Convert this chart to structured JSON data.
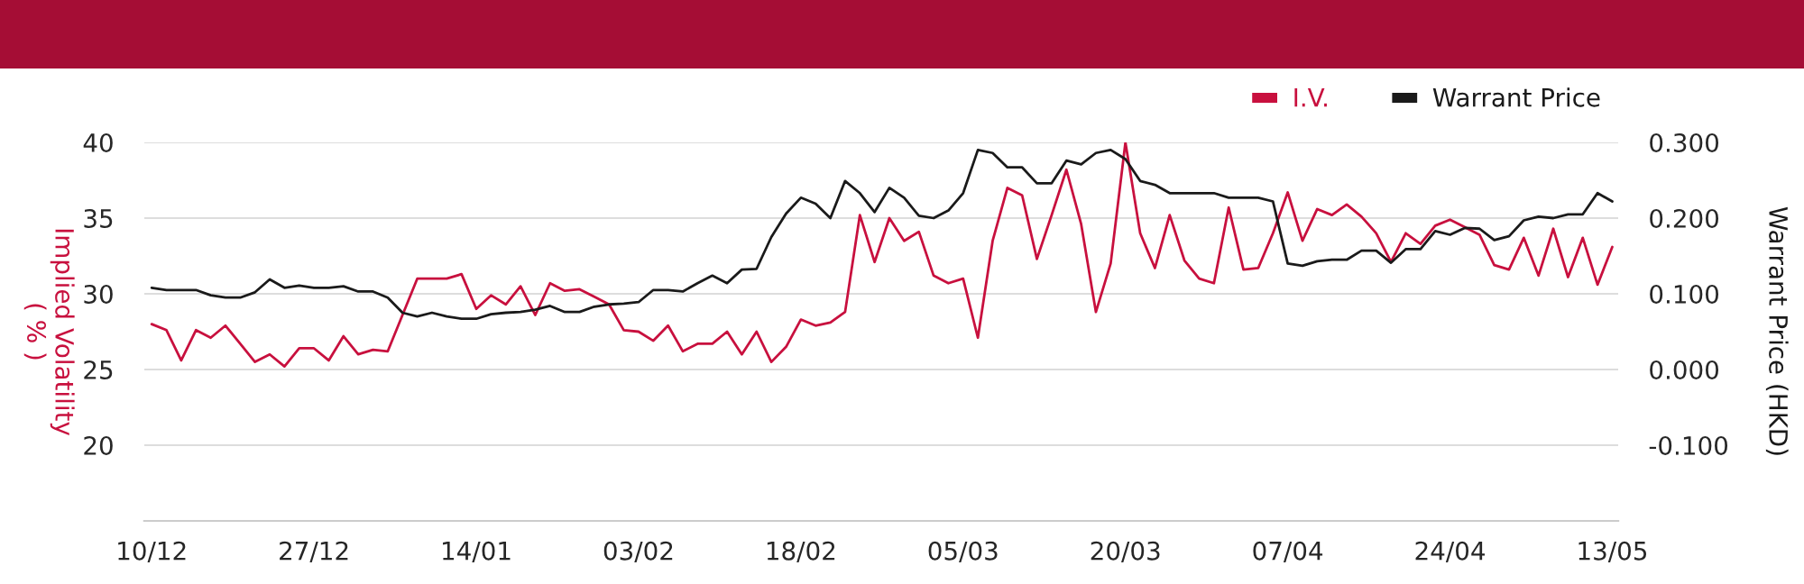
{
  "chart_data": {
    "type": "line",
    "categories": [
      "10/12",
      null,
      null,
      null,
      null,
      null,
      null,
      null,
      null,
      null,
      null,
      "27/12",
      null,
      null,
      null,
      null,
      null,
      null,
      null,
      null,
      null,
      null,
      "14/01",
      null,
      null,
      null,
      null,
      null,
      null,
      null,
      null,
      null,
      null,
      "03/02",
      null,
      null,
      null,
      null,
      null,
      null,
      null,
      null,
      null,
      null,
      "18/02",
      null,
      null,
      null,
      null,
      null,
      null,
      null,
      null,
      null,
      null,
      "05/03",
      null,
      null,
      null,
      null,
      null,
      null,
      null,
      null,
      null,
      null,
      "20/03",
      null,
      null,
      null,
      null,
      null,
      null,
      null,
      null,
      null,
      null,
      "07/04",
      null,
      null,
      null,
      null,
      null,
      null,
      null,
      null,
      null,
      null,
      "24/04",
      null,
      null,
      null,
      null,
      null,
      null,
      null,
      null,
      null,
      null,
      "13/05"
    ],
    "series": [
      {
        "name": "I.V.",
        "color": "#c8103e",
        "axis": "y",
        "values": [
          28.0,
          27.6,
          25.6,
          27.6,
          27.1,
          27.9,
          26.7,
          25.5,
          26.0,
          25.2,
          26.4,
          26.4,
          25.6,
          27.2,
          26.0,
          26.3,
          26.2,
          28.6,
          31.0,
          31.0,
          31.0,
          31.3,
          29.0,
          29.9,
          29.3,
          30.5,
          28.6,
          30.7,
          30.2,
          30.3,
          29.8,
          29.3,
          27.6,
          27.5,
          26.9,
          27.9,
          26.2,
          26.7,
          26.7,
          27.5,
          26.0,
          27.5,
          25.5,
          26.5,
          28.3,
          27.9,
          28.1,
          28.8,
          35.2,
          32.1,
          35.0,
          33.5,
          34.1,
          31.2,
          30.7,
          31.0,
          27.1,
          33.5,
          37.0,
          36.5,
          32.3,
          35.2,
          38.2,
          34.6,
          28.8,
          32.0,
          40.0,
          34.0,
          31.7,
          35.2,
          32.2,
          31.0,
          30.7,
          35.7,
          31.6,
          31.7,
          34.0,
          36.7,
          33.5,
          35.6,
          35.2,
          35.9,
          35.1,
          34.0,
          32.1,
          34.0,
          33.3,
          34.5,
          34.9,
          34.4,
          33.9,
          31.9,
          31.6,
          33.7,
          31.2,
          34.3,
          31.1,
          33.7,
          30.6,
          33.1
        ]
      },
      {
        "name": "Warrant Price",
        "color": "#1a1a1a",
        "axis": "y2",
        "values": [
          0.108,
          0.105,
          0.105,
          0.105,
          0.098,
          0.095,
          0.095,
          0.102,
          0.119,
          0.108,
          0.111,
          0.108,
          0.108,
          0.11,
          0.103,
          0.103,
          0.095,
          0.075,
          0.07,
          0.075,
          0.07,
          0.067,
          0.067,
          0.073,
          0.075,
          0.076,
          0.079,
          0.084,
          0.076,
          0.076,
          0.083,
          0.086,
          0.087,
          0.089,
          0.105,
          0.105,
          0.103,
          0.114,
          0.124,
          0.114,
          0.132,
          0.133,
          0.175,
          0.206,
          0.227,
          0.219,
          0.2,
          0.249,
          0.233,
          0.208,
          0.24,
          0.227,
          0.203,
          0.2,
          0.21,
          0.233,
          0.29,
          0.286,
          0.267,
          0.267,
          0.246,
          0.246,
          0.276,
          0.271,
          0.286,
          0.29,
          0.278,
          0.249,
          0.244,
          0.233,
          0.233,
          0.233,
          0.233,
          0.227,
          0.227,
          0.227,
          0.222,
          0.14,
          0.137,
          0.143,
          0.145,
          0.145,
          0.157,
          0.157,
          0.141,
          0.159,
          0.159,
          0.183,
          0.178,
          0.187,
          0.186,
          0.171,
          0.176,
          0.197,
          0.202,
          0.2,
          0.205,
          0.205,
          0.233,
          0.222
        ]
      }
    ],
    "ylabel": "Implied Volatility\n( % )",
    "y2label": "Warrant Price (HKD)",
    "ylim": [
      15,
      40
    ],
    "yticks": [
      20,
      25,
      30,
      35,
      40
    ],
    "y2lim": [
      -0.2,
      0.3
    ],
    "y2ticks": [
      {
        "value": -0.1,
        "label": "-0.100"
      },
      {
        "value": 0,
        "label": "0.000"
      },
      {
        "value": 0.1,
        "label": "0.100"
      },
      {
        "value": 0.2,
        "label": "0.200"
      },
      {
        "value": 0.3,
        "label": "0.300"
      }
    ],
    "grid": "y",
    "legend": "top right",
    "marker": "none",
    "line_style": "solid"
  }
}
